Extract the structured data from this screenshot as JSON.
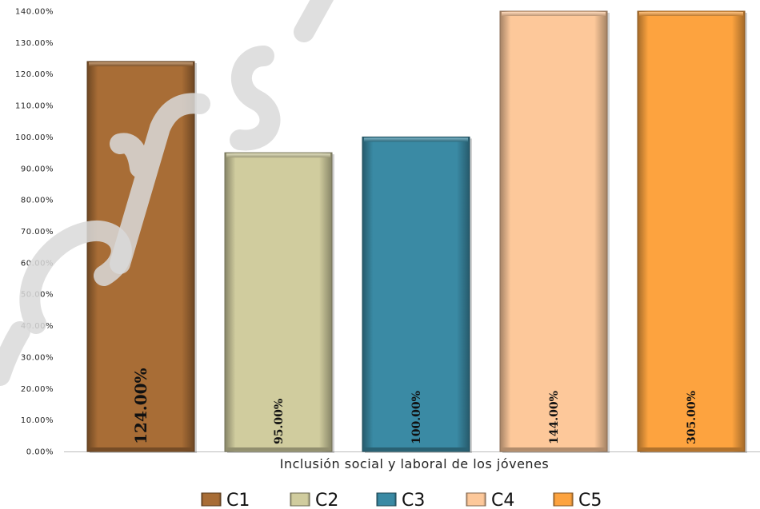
{
  "chart_data": {
    "type": "bar",
    "categories": [
      "C1",
      "C2",
      "C3",
      "C4",
      "C5"
    ],
    "values": [
      124,
      95,
      100,
      144,
      305
    ],
    "value_labels": [
      "124.00%",
      "95.00%",
      "100.00%",
      "144.00%",
      "305.00%"
    ],
    "colors": [
      "#a86d36",
      "#d0cc9e",
      "#3a8aa4",
      "#fdc89a",
      "#fda33f"
    ],
    "xlabel": "Inclusión social y laboral de los jóvenes",
    "ylabel": "",
    "ylim": [
      0,
      140
    ],
    "yticks": [
      0,
      10,
      20,
      30,
      40,
      50,
      60,
      70,
      80,
      90,
      100,
      110,
      120,
      130,
      140
    ],
    "ytick_labels": [
      "0.00%",
      "10.00%",
      "20.00%",
      "30.00%",
      "40.00%",
      "50.00%",
      "60.00%",
      "70.00%",
      "80.00%",
      "90.00%",
      "100.00%",
      "110.00%",
      "120.00%",
      "130.00%",
      "140.00%"
    ],
    "legend": {
      "position": "bottom",
      "entries": [
        "C1",
        "C2",
        "C3",
        "C4",
        "C5"
      ]
    },
    "grid": false
  }
}
